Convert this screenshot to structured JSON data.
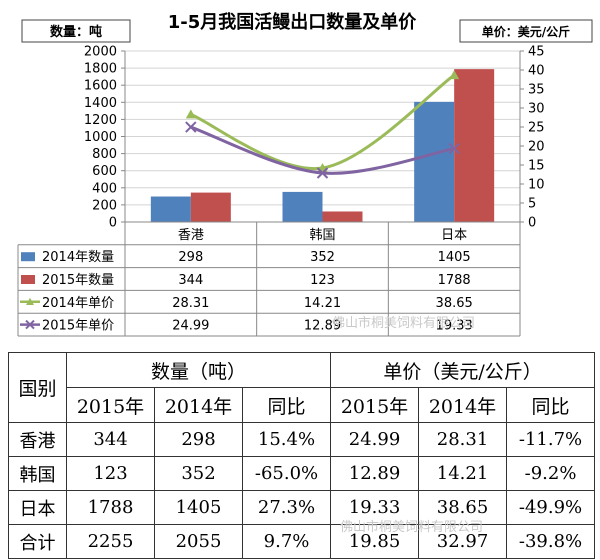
{
  "chart_data": {
    "type": "bar",
    "title": "1-5月我国活鳗出口数量及单价",
    "ylabel_left": "数量：吨",
    "ylabel_right": "单价：美元/公斤",
    "categories": [
      "香港",
      "韩国",
      "日本"
    ],
    "ylim_left": [
      0,
      2000
    ],
    "ylim_right": [
      0,
      45
    ],
    "left_ticks": [
      0,
      200,
      400,
      600,
      800,
      1000,
      1200,
      1400,
      1600,
      1800,
      2000
    ],
    "right_ticks": [
      0,
      5,
      10,
      15,
      20,
      25,
      30,
      35,
      40,
      45
    ],
    "grid": true,
    "series": [
      {
        "name": "2014年数量",
        "type": "bar",
        "axis": "left",
        "color": "#4f81bd",
        "values": [
          298,
          352,
          1405
        ]
      },
      {
        "name": "2015年数量",
        "type": "bar",
        "axis": "left",
        "color": "#c0504d",
        "values": [
          344,
          123,
          1788
        ]
      },
      {
        "name": "2014年单价",
        "type": "line",
        "axis": "right",
        "color": "#9bbb59",
        "marker": "triangle",
        "values": [
          28.31,
          14.21,
          38.65
        ]
      },
      {
        "name": "2015年单价",
        "type": "line",
        "axis": "right",
        "color": "#8064a2",
        "marker": "x",
        "values": [
          24.99,
          12.89,
          19.33
        ]
      }
    ],
    "data_table_cells": [
      [
        "298",
        "352",
        "1405"
      ],
      [
        "344",
        "123",
        "1788"
      ],
      [
        "28.31",
        "14.21",
        "38.65"
      ],
      [
        "24.99",
        "12.89",
        "19.33"
      ]
    ]
  },
  "summary_table": {
    "country_header": "国别",
    "qty_header": "数量（吨）",
    "price_header": "单价（美元/公斤）",
    "sub_headers": [
      "2015年",
      "2014年",
      "同比",
      "2015年",
      "2014年",
      "同比"
    ],
    "rows": [
      {
        "country": "香港",
        "cells": [
          "344",
          "298",
          "15.4%",
          "24.99",
          "28.31",
          "-11.7%"
        ]
      },
      {
        "country": "韩国",
        "cells": [
          "123",
          "352",
          "-65.0%",
          "12.89",
          "14.21",
          "-9.2%"
        ]
      },
      {
        "country": "日本",
        "cells": [
          "1788",
          "1405",
          "27.3%",
          "19.33",
          "38.65",
          "-49.9%"
        ]
      },
      {
        "country": "合计",
        "cells": [
          "2255",
          "2055",
          "9.7%",
          "19.85",
          "32.97",
          "-39.8%"
        ]
      }
    ]
  },
  "watermark": "佛山市桐美饲料有限公司"
}
